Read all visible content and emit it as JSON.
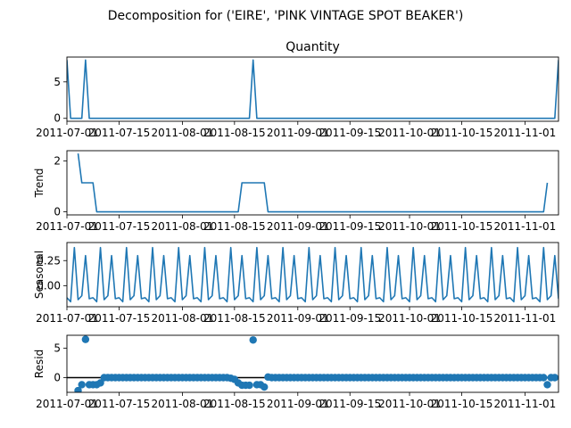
{
  "figure_title": "Decomposition for ('EIRE', 'PINK VINTAGE SPOT BEAKER')",
  "line_color": "#1f77b4",
  "chart_data": [
    {
      "type": "line",
      "title": "Quantity",
      "ylabel": "",
      "x_start": "2011-07-01",
      "x_end": "2011-11-10",
      "xticks": [
        "2011-07-01",
        "2011-07-15",
        "2011-08-01",
        "2011-08-15",
        "2011-09-01",
        "2011-09-15",
        "2011-10-01",
        "2011-10-15",
        "2011-11-01"
      ],
      "ylim": [
        -0.4,
        8.4
      ],
      "yticks": [
        0,
        5
      ],
      "series": [
        {
          "points": [
            [
              "2011-07-01",
              8
            ],
            [
              "2011-07-02",
              0
            ],
            [
              "2011-07-05",
              0
            ],
            [
              "2011-07-06",
              8
            ],
            [
              "2011-07-07",
              0
            ],
            [
              "2011-08-19",
              0
            ],
            [
              "2011-08-20",
              8
            ],
            [
              "2011-08-21",
              0
            ],
            [
              "2011-11-09",
              0
            ],
            [
              "2011-11-10",
              8
            ]
          ]
        }
      ]
    },
    {
      "type": "line",
      "title": "",
      "ylabel": "Trend",
      "x_start": "2011-07-01",
      "x_end": "2011-11-10",
      "xticks": [
        "2011-07-01",
        "2011-07-15",
        "2011-08-01",
        "2011-08-15",
        "2011-09-01",
        "2011-09-15",
        "2011-10-01",
        "2011-10-15",
        "2011-11-01"
      ],
      "ylim": [
        -0.12,
        2.4
      ],
      "yticks": [
        0,
        2
      ],
      "series": [
        {
          "points": [
            [
              "2011-07-04",
              2.29
            ],
            [
              "2011-07-05",
              1.14
            ],
            [
              "2011-07-08",
              1.14
            ],
            [
              "2011-07-09",
              0
            ],
            [
              "2011-08-16",
              0
            ],
            [
              "2011-08-17",
              1.14
            ],
            [
              "2011-08-23",
              1.14
            ],
            [
              "2011-08-24",
              0
            ],
            [
              "2011-11-06",
              0
            ],
            [
              "2011-11-07",
              1.14
            ]
          ]
        }
      ]
    },
    {
      "type": "line",
      "title": "",
      "ylabel": "Seasonal",
      "x_start": "2011-07-01",
      "x_end": "2011-11-10",
      "xticks": [
        "2011-07-01",
        "2011-07-15",
        "2011-08-01",
        "2011-08-15",
        "2011-09-01",
        "2011-09-15",
        "2011-10-01",
        "2011-10-15",
        "2011-11-01"
      ],
      "ylim": [
        -0.21,
        0.43
      ],
      "yticks": [
        0.0,
        0.25
      ],
      "period": 7,
      "seasonal_cycle": [
        -0.12,
        -0.16,
        0.38,
        -0.14,
        -0.1,
        0.3,
        -0.13
      ]
    },
    {
      "type": "scatter",
      "title": "",
      "ylabel": "Resid",
      "x_start": "2011-07-01",
      "x_end": "2011-11-10",
      "xticks": [
        "2011-07-01",
        "2011-07-15",
        "2011-08-01",
        "2011-08-15",
        "2011-09-01",
        "2011-09-15",
        "2011-10-01",
        "2011-10-15",
        "2011-11-01"
      ],
      "ylim": [
        -2.5,
        7.2
      ],
      "yticks": [
        0,
        5
      ],
      "reference_line": 0,
      "default_value": 0,
      "default_range": [
        "2011-07-07",
        "2011-11-09"
      ],
      "points": [
        [
          "2011-07-04",
          -2.2
        ],
        [
          "2011-07-05",
          -1.2
        ],
        [
          "2011-07-06",
          6.5
        ],
        [
          "2011-07-07",
          -1.2
        ],
        [
          "2011-07-08",
          -1.2
        ],
        [
          "2011-07-09",
          -1.2
        ],
        [
          "2011-07-10",
          -0.9
        ],
        [
          "2011-08-14",
          -0.1
        ],
        [
          "2011-08-15",
          -0.3
        ],
        [
          "2011-08-16",
          -0.9
        ],
        [
          "2011-08-17",
          -1.3
        ],
        [
          "2011-08-18",
          -1.3
        ],
        [
          "2011-08-19",
          -1.3
        ],
        [
          "2011-08-20",
          6.4
        ],
        [
          "2011-08-21",
          -1.2
        ],
        [
          "2011-08-22",
          -1.2
        ],
        [
          "2011-08-23",
          -1.6
        ],
        [
          "2011-08-24",
          0.1
        ],
        [
          "2011-11-07",
          -1.2
        ]
      ]
    }
  ]
}
